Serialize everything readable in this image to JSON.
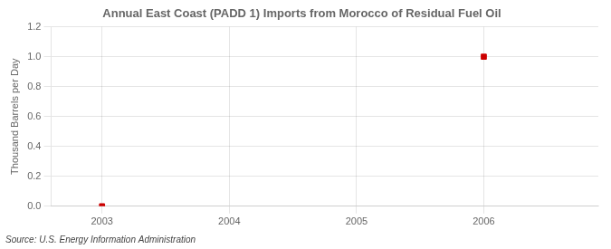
{
  "chart_data": {
    "type": "scatter",
    "title": "Annual East Coast (PADD 1) Imports from Morocco of Residual Fuel Oil",
    "ylabel": "Thousand Barrels per Day",
    "annotations": [
      "Source: U.S. Energy Information Administration"
    ],
    "x": [
      2003,
      2006
    ],
    "values": [
      0.0,
      1.0
    ],
    "color": "#cc0000",
    "marker": "square",
    "xlim": [
      2002.6,
      2006.9
    ],
    "ylim": [
      0.0,
      1.2
    ],
    "xticks": [
      2003,
      2004,
      2005,
      2006
    ],
    "yticks": [
      {
        "value": 0.0,
        "label": "0.0"
      },
      0.2,
      0.4,
      0.6,
      0.8,
      {
        "value": 1.0,
        "label": "1.0"
      },
      1.2
    ],
    "grid": true
  }
}
